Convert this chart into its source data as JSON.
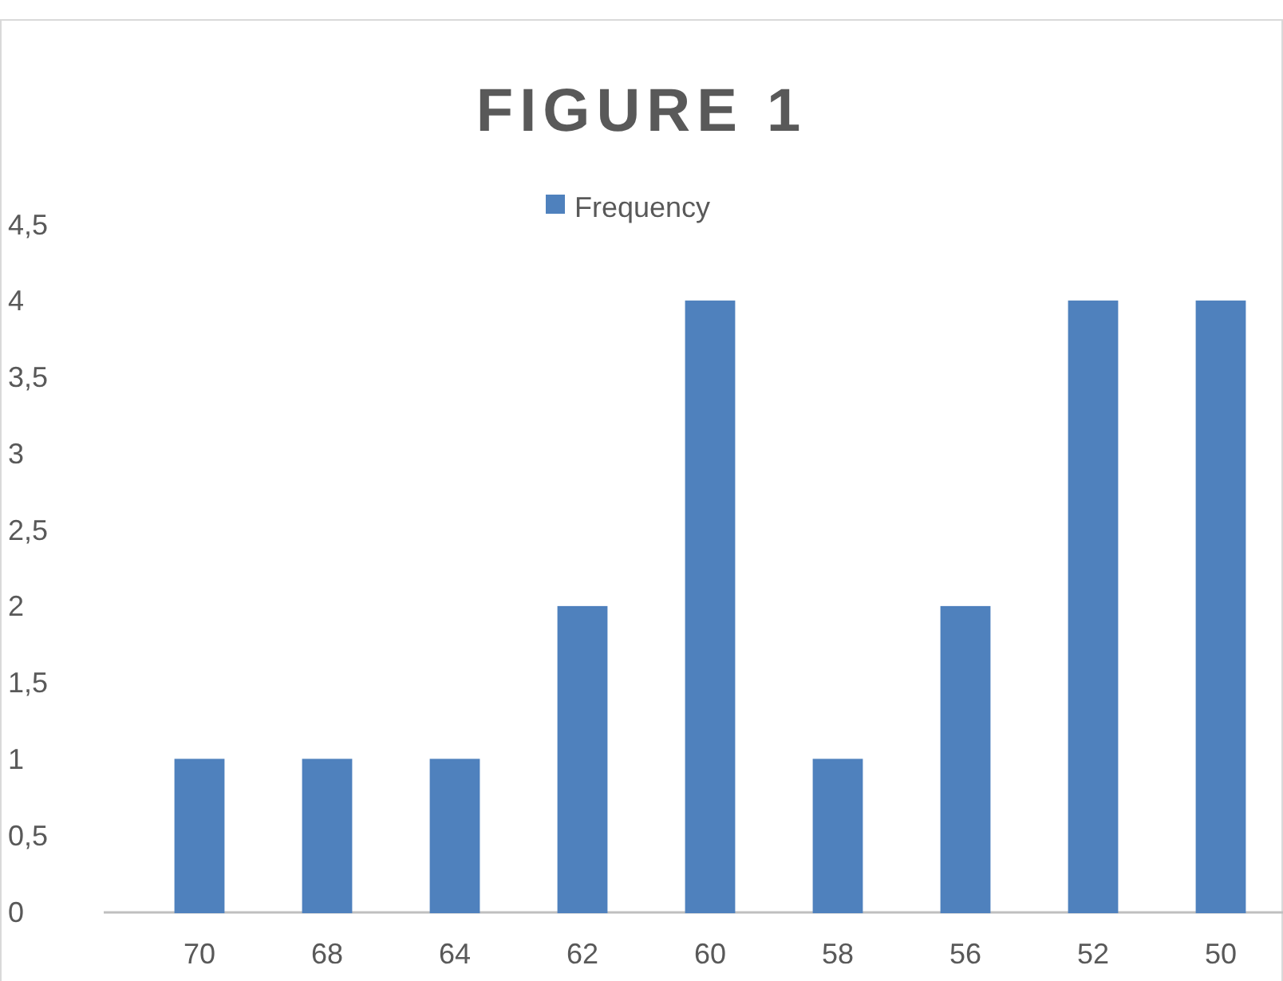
{
  "chart_data": {
    "type": "bar",
    "title": "FIGURE 1",
    "categories": [
      "70",
      "68",
      "64",
      "62",
      "60",
      "58",
      "56",
      "52",
      "50"
    ],
    "series": [
      {
        "name": "Frequency",
        "color": "#4f81bd",
        "values": [
          1,
          1,
          1,
          2,
          4,
          1,
          2,
          4,
          4
        ]
      }
    ],
    "ylim": [
      0,
      4.5
    ],
    "yticks": [
      0,
      {
        "value": 0.5,
        "label": "0,5"
      },
      1,
      {
        "value": 1.5,
        "label": "1,5"
      },
      2,
      {
        "value": 2.5,
        "label": "2,5"
      },
      3,
      {
        "value": 3.5,
        "label": "3,5"
      },
      4,
      {
        "value": 4.5,
        "label": "4,5"
      }
    ],
    "grid": false,
    "legend": "top"
  }
}
